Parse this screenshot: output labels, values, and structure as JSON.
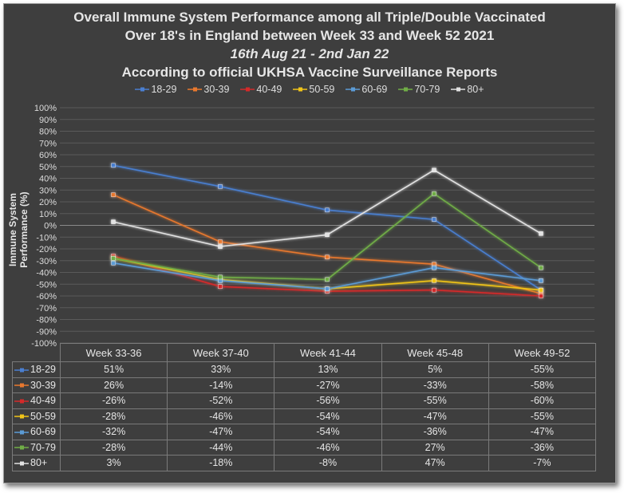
{
  "title": {
    "line1": "Overall Immune System Performance among all Triple/Double Vaccinated",
    "line2": "Over 18's in England between Week 33 and Week 52 2021",
    "line3": "16th Aug 21 - 2nd Jan 22",
    "line4": "According to official UKHSA Vaccine Surveillance Reports"
  },
  "chart_data": {
    "type": "line",
    "ylabel": "Immune System Performance (%)",
    "ylim": [
      -100,
      100
    ],
    "yticks": [
      "100%",
      "90%",
      "80%",
      "70%",
      "60%",
      "50%",
      "40%",
      "30%",
      "20%",
      "10%",
      "0%",
      "-10%",
      "-20%",
      "-30%",
      "-40%",
      "-50%",
      "-60%",
      "-70%",
      "-80%",
      "-90%",
      "-100%"
    ],
    "categories": [
      "Week 33-36",
      "Week 37-40",
      "Week 41-44",
      "Week 45-48",
      "Week 49-52"
    ],
    "legend_position": "top",
    "grid": true,
    "series": [
      {
        "name": "18-29",
        "color": "#4a7fd0",
        "values": [
          51,
          33,
          13,
          5,
          -55
        ],
        "labels": [
          "51%",
          "33%",
          "13%",
          "5%",
          "-55%"
        ]
      },
      {
        "name": "30-39",
        "color": "#e8782e",
        "values": [
          26,
          -14,
          -27,
          -33,
          -58
        ],
        "labels": [
          "26%",
          "-14%",
          "-27%",
          "-33%",
          "-58%"
        ]
      },
      {
        "name": "40-49",
        "color": "#d42a2a",
        "values": [
          -26,
          -52,
          -56,
          -55,
          -60
        ],
        "labels": [
          "-26%",
          "-52%",
          "-56%",
          "-55%",
          "-60%"
        ]
      },
      {
        "name": "50-59",
        "color": "#f0c419",
        "values": [
          -28,
          -46,
          -54,
          -47,
          -55
        ],
        "labels": [
          "-28%",
          "-46%",
          "-54%",
          "-47%",
          "-55%"
        ]
      },
      {
        "name": "60-69",
        "color": "#5b9bd5",
        "values": [
          -32,
          -47,
          -54,
          -36,
          -47
        ],
        "labels": [
          "-32%",
          "-47%",
          "-54%",
          "-36%",
          "-47%"
        ]
      },
      {
        "name": "70-79",
        "color": "#70ad47",
        "values": [
          -28,
          -44,
          -46,
          27,
          -36
        ],
        "labels": [
          "-28%",
          "-44%",
          "-46%",
          "27%",
          "-36%"
        ]
      },
      {
        "name": "80+",
        "color": "#e2e2e2",
        "values": [
          3,
          -18,
          -8,
          47,
          -7
        ],
        "labels": [
          "3%",
          "-18%",
          "-8%",
          "47%",
          "-7%"
        ]
      }
    ]
  }
}
